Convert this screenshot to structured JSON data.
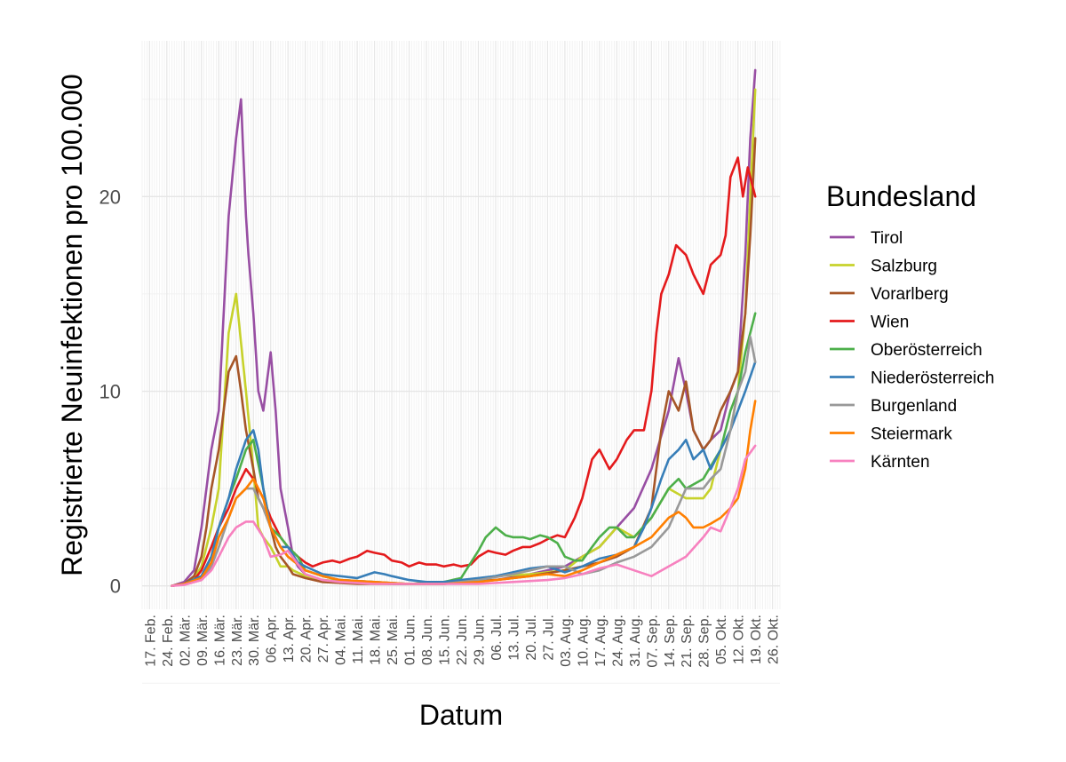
{
  "chart_data": {
    "type": "line",
    "xlabel": "Datum",
    "ylabel": "Registrierte Neuinfektionen pro 100.000",
    "xlim": [
      "2020-02-14",
      "2020-10-29"
    ],
    "ylim": [
      -1.2,
      28
    ],
    "yticks": [
      0,
      10,
      20
    ],
    "ytick_labels": [
      "0",
      "10",
      "20"
    ],
    "xticks": [
      "2020-02-17",
      "2020-02-24",
      "2020-03-02",
      "2020-03-09",
      "2020-03-16",
      "2020-03-23",
      "2020-03-30",
      "2020-04-06",
      "2020-04-13",
      "2020-04-20",
      "2020-04-27",
      "2020-05-04",
      "2020-05-11",
      "2020-05-18",
      "2020-05-25",
      "2020-06-01",
      "2020-06-08",
      "2020-06-15",
      "2020-06-22",
      "2020-06-29",
      "2020-07-06",
      "2020-07-13",
      "2020-07-20",
      "2020-07-27",
      "2020-08-03",
      "2020-08-10",
      "2020-08-17",
      "2020-08-24",
      "2020-08-31",
      "2020-09-07",
      "2020-09-14",
      "2020-09-21",
      "2020-09-28",
      "2020-10-05",
      "2020-10-12",
      "2020-10-19",
      "2020-10-26"
    ],
    "xtick_labels": [
      "17. Feb.",
      "24. Feb.",
      "02. Mär.",
      "09. Mär.",
      "16. Mär.",
      "23. Mär.",
      "30. Mär.",
      "06. Apr.",
      "13. Apr.",
      "20. Apr.",
      "27. Apr.",
      "04. Mai.",
      "11. Mai.",
      "18. Mai.",
      "25. Mai.",
      "01. Jun.",
      "08. Jun.",
      "15. Jun.",
      "22. Jun.",
      "29. Jun.",
      "06. Jul.",
      "13. Jul.",
      "20. Jul.",
      "27. Jul.",
      "03. Aug.",
      "10. Aug.",
      "17. Aug.",
      "24. Aug.",
      "31. Aug.",
      "07. Sep.",
      "14. Sep.",
      "21. Sep.",
      "28. Sep.",
      "05. Okt.",
      "12. Okt.",
      "19. Okt.",
      "26. Okt."
    ],
    "grid": true,
    "legend": {
      "title": "Bundesland",
      "position": "right"
    },
    "series": [
      {
        "name": "Tirol",
        "color": "#984EA3",
        "x": [
          "2020-02-26",
          "2020-03-02",
          "2020-03-06",
          "2020-03-09",
          "2020-03-11",
          "2020-03-13",
          "2020-03-16",
          "2020-03-18",
          "2020-03-20",
          "2020-03-23",
          "2020-03-25",
          "2020-03-27",
          "2020-03-28",
          "2020-03-30",
          "2020-04-01",
          "2020-04-03",
          "2020-04-06",
          "2020-04-08",
          "2020-04-10",
          "2020-04-13",
          "2020-04-15",
          "2020-04-17",
          "2020-04-20",
          "2020-04-23",
          "2020-04-27",
          "2020-05-04",
          "2020-05-25",
          "2020-06-15",
          "2020-07-06",
          "2020-07-20",
          "2020-08-03",
          "2020-08-10",
          "2020-08-17",
          "2020-08-24",
          "2020-08-31",
          "2020-09-07",
          "2020-09-14",
          "2020-09-18",
          "2020-09-21",
          "2020-09-24",
          "2020-09-28",
          "2020-10-01",
          "2020-10-05",
          "2020-10-09",
          "2020-10-12",
          "2020-10-15",
          "2020-10-17",
          "2020-10-19"
        ],
        "y": [
          0,
          0.2,
          0.8,
          3,
          5,
          7,
          9,
          14,
          19,
          23,
          25,
          19,
          17,
          14,
          10,
          9,
          12,
          9,
          5,
          3,
          1.5,
          1,
          0.6,
          0.4,
          0.3,
          0.2,
          0.1,
          0.1,
          0.3,
          0.6,
          1,
          1.5,
          2,
          3,
          4,
          6,
          9,
          11.7,
          10,
          8,
          7,
          7.5,
          8,
          10,
          11,
          17,
          23,
          26.5
        ]
      },
      {
        "name": "Salzburg",
        "color": "#C7D22B",
        "x": [
          "2020-02-26",
          "2020-03-02",
          "2020-03-06",
          "2020-03-09",
          "2020-03-11",
          "2020-03-13",
          "2020-03-16",
          "2020-03-18",
          "2020-03-20",
          "2020-03-23",
          "2020-03-25",
          "2020-03-27",
          "2020-03-30",
          "2020-04-01",
          "2020-04-03",
          "2020-04-06",
          "2020-04-08",
          "2020-04-10",
          "2020-04-13",
          "2020-04-15",
          "2020-04-20",
          "2020-04-27",
          "2020-05-11",
          "2020-06-01",
          "2020-06-22",
          "2020-07-06",
          "2020-07-20",
          "2020-08-03",
          "2020-08-10",
          "2020-08-17",
          "2020-08-24",
          "2020-08-31",
          "2020-09-07",
          "2020-09-14",
          "2020-09-21",
          "2020-09-28",
          "2020-10-01",
          "2020-10-05",
          "2020-10-09",
          "2020-10-12",
          "2020-10-15",
          "2020-10-17",
          "2020-10-19"
        ],
        "y": [
          0,
          0.1,
          0.4,
          1,
          2,
          3,
          5,
          9,
          13,
          15,
          12.5,
          10,
          6,
          3,
          2.5,
          2,
          1.5,
          1,
          1,
          0.8,
          0.5,
          0.3,
          0.2,
          0.1,
          0.2,
          0.5,
          0.6,
          0.8,
          1.5,
          2,
          3,
          2.5,
          3.5,
          5,
          4.5,
          4.5,
          5,
          7,
          8,
          10,
          14,
          20,
          25.5
        ]
      },
      {
        "name": "Vorarlberg",
        "color": "#A65628",
        "x": [
          "2020-02-26",
          "2020-03-02",
          "2020-03-06",
          "2020-03-09",
          "2020-03-11",
          "2020-03-13",
          "2020-03-16",
          "2020-03-18",
          "2020-03-20",
          "2020-03-23",
          "2020-03-25",
          "2020-03-27",
          "2020-03-30",
          "2020-04-01",
          "2020-04-03",
          "2020-04-06",
          "2020-04-08",
          "2020-04-10",
          "2020-04-13",
          "2020-04-15",
          "2020-04-20",
          "2020-04-27",
          "2020-05-11",
          "2020-06-01",
          "2020-06-22",
          "2020-07-06",
          "2020-07-20",
          "2020-08-03",
          "2020-08-10",
          "2020-08-17",
          "2020-08-24",
          "2020-08-31",
          "2020-09-07",
          "2020-09-11",
          "2020-09-14",
          "2020-09-18",
          "2020-09-21",
          "2020-09-24",
          "2020-09-28",
          "2020-10-01",
          "2020-10-05",
          "2020-10-09",
          "2020-10-12",
          "2020-10-15",
          "2020-10-17",
          "2020-10-19"
        ],
        "y": [
          0,
          0.1,
          0.5,
          1.5,
          3,
          5,
          7,
          9,
          11,
          11.8,
          10,
          8,
          6,
          4.5,
          4,
          3,
          2,
          1.5,
          1,
          0.6,
          0.4,
          0.2,
          0.1,
          0.1,
          0.2,
          0.3,
          0.5,
          0.8,
          1,
          1.2,
          1.5,
          2,
          4,
          8,
          10,
          9,
          10.5,
          8,
          7,
          7.5,
          9,
          10,
          11,
          14,
          18,
          23
        ]
      },
      {
        "name": "Wien",
        "color": "#E41A1C",
        "x": [
          "2020-02-26",
          "2020-03-02",
          "2020-03-06",
          "2020-03-09",
          "2020-03-13",
          "2020-03-16",
          "2020-03-20",
          "2020-03-23",
          "2020-03-27",
          "2020-03-30",
          "2020-04-03",
          "2020-04-06",
          "2020-04-10",
          "2020-04-13",
          "2020-04-17",
          "2020-04-20",
          "2020-04-23",
          "2020-04-27",
          "2020-05-01",
          "2020-05-04",
          "2020-05-08",
          "2020-05-11",
          "2020-05-15",
          "2020-05-18",
          "2020-05-22",
          "2020-05-25",
          "2020-05-29",
          "2020-06-01",
          "2020-06-05",
          "2020-06-08",
          "2020-06-12",
          "2020-06-15",
          "2020-06-19",
          "2020-06-22",
          "2020-06-26",
          "2020-06-29",
          "2020-07-03",
          "2020-07-06",
          "2020-07-10",
          "2020-07-13",
          "2020-07-17",
          "2020-07-20",
          "2020-07-24",
          "2020-07-27",
          "2020-07-31",
          "2020-08-03",
          "2020-08-07",
          "2020-08-10",
          "2020-08-14",
          "2020-08-17",
          "2020-08-21",
          "2020-08-24",
          "2020-08-28",
          "2020-08-31",
          "2020-09-04",
          "2020-09-07",
          "2020-09-09",
          "2020-09-11",
          "2020-09-14",
          "2020-09-17",
          "2020-09-21",
          "2020-09-24",
          "2020-09-28",
          "2020-10-01",
          "2020-10-05",
          "2020-10-07",
          "2020-10-09",
          "2020-10-12",
          "2020-10-14",
          "2020-10-16",
          "2020-10-19"
        ],
        "y": [
          0,
          0.1,
          0.3,
          0.8,
          2,
          3,
          4,
          5,
          6,
          5.5,
          4.5,
          3.5,
          2.5,
          2,
          1.5,
          1.2,
          1,
          1.2,
          1.3,
          1.2,
          1.4,
          1.5,
          1.8,
          1.7,
          1.6,
          1.3,
          1.2,
          1,
          1.2,
          1.1,
          1.1,
          1,
          1.1,
          1,
          1.1,
          1.5,
          1.8,
          1.7,
          1.6,
          1.8,
          2,
          2,
          2.2,
          2.4,
          2.6,
          2.5,
          3.5,
          4.5,
          6.5,
          7,
          6,
          6.5,
          7.5,
          8,
          8,
          10,
          13,
          15,
          16,
          17.5,
          17,
          16,
          15,
          16.5,
          17,
          18,
          21,
          22,
          20,
          21.5,
          20
        ]
      },
      {
        "name": "Oberösterreich",
        "color": "#4DAF4A",
        "x": [
          "2020-02-26",
          "2020-03-02",
          "2020-03-09",
          "2020-03-13",
          "2020-03-16",
          "2020-03-20",
          "2020-03-23",
          "2020-03-27",
          "2020-03-30",
          "2020-04-03",
          "2020-04-06",
          "2020-04-10",
          "2020-04-13",
          "2020-04-17",
          "2020-04-20",
          "2020-04-27",
          "2020-05-04",
          "2020-05-18",
          "2020-06-01",
          "2020-06-15",
          "2020-06-22",
          "2020-06-26",
          "2020-06-29",
          "2020-07-02",
          "2020-07-06",
          "2020-07-10",
          "2020-07-13",
          "2020-07-17",
          "2020-07-20",
          "2020-07-24",
          "2020-07-27",
          "2020-07-31",
          "2020-08-03",
          "2020-08-07",
          "2020-08-10",
          "2020-08-14",
          "2020-08-17",
          "2020-08-21",
          "2020-08-24",
          "2020-08-28",
          "2020-08-31",
          "2020-09-07",
          "2020-09-14",
          "2020-09-18",
          "2020-09-21",
          "2020-09-28",
          "2020-10-05",
          "2020-10-09",
          "2020-10-12",
          "2020-10-15",
          "2020-10-19"
        ],
        "y": [
          0,
          0.1,
          0.5,
          1.5,
          3,
          4.5,
          5.5,
          7,
          7.5,
          5,
          3,
          2.5,
          2,
          1.5,
          0.8,
          0.5,
          0.3,
          0.2,
          0.1,
          0.2,
          0.4,
          1.2,
          1.8,
          2.5,
          3,
          2.6,
          2.5,
          2.5,
          2.4,
          2.6,
          2.5,
          2.2,
          1.5,
          1.3,
          1.3,
          2,
          2.5,
          3,
          3,
          2.5,
          2.5,
          3.5,
          5,
          5.5,
          5,
          5.5,
          7,
          9,
          10,
          12,
          14
        ]
      },
      {
        "name": "Niederösterreich",
        "color": "#377EB8",
        "x": [
          "2020-02-26",
          "2020-03-02",
          "2020-03-09",
          "2020-03-13",
          "2020-03-16",
          "2020-03-20",
          "2020-03-23",
          "2020-03-27",
          "2020-03-30",
          "2020-04-01",
          "2020-04-03",
          "2020-04-06",
          "2020-04-10",
          "2020-04-13",
          "2020-04-17",
          "2020-04-20",
          "2020-04-27",
          "2020-05-04",
          "2020-05-11",
          "2020-05-18",
          "2020-05-22",
          "2020-05-25",
          "2020-06-01",
          "2020-06-08",
          "2020-06-15",
          "2020-06-22",
          "2020-06-29",
          "2020-07-06",
          "2020-07-13",
          "2020-07-20",
          "2020-07-27",
          "2020-08-03",
          "2020-08-10",
          "2020-08-17",
          "2020-08-24",
          "2020-08-31",
          "2020-09-04",
          "2020-09-07",
          "2020-09-11",
          "2020-09-14",
          "2020-09-18",
          "2020-09-21",
          "2020-09-24",
          "2020-09-28",
          "2020-10-01",
          "2020-10-05",
          "2020-10-09",
          "2020-10-12",
          "2020-10-15",
          "2020-10-19"
        ],
        "y": [
          0,
          0.1,
          0.5,
          1.5,
          3,
          4.5,
          6,
          7.5,
          8,
          7,
          5,
          3,
          2,
          2,
          1.2,
          1,
          0.6,
          0.5,
          0.4,
          0.7,
          0.6,
          0.5,
          0.3,
          0.2,
          0.2,
          0.3,
          0.4,
          0.5,
          0.7,
          0.9,
          1,
          0.7,
          1,
          1.4,
          1.6,
          2,
          3,
          4,
          5.5,
          6.5,
          7,
          7.5,
          6.5,
          7,
          6,
          7,
          8,
          9,
          10,
          11.5
        ]
      },
      {
        "name": "Burgenland",
        "color": "#999999",
        "x": [
          "2020-02-26",
          "2020-03-02",
          "2020-03-09",
          "2020-03-13",
          "2020-03-16",
          "2020-03-20",
          "2020-03-23",
          "2020-03-27",
          "2020-03-30",
          "2020-04-03",
          "2020-04-06",
          "2020-04-10",
          "2020-04-13",
          "2020-04-20",
          "2020-04-27",
          "2020-05-04",
          "2020-05-18",
          "2020-06-01",
          "2020-06-15",
          "2020-06-29",
          "2020-07-13",
          "2020-07-20",
          "2020-07-27",
          "2020-08-03",
          "2020-08-10",
          "2020-08-17",
          "2020-08-24",
          "2020-08-31",
          "2020-09-07",
          "2020-09-14",
          "2020-09-21",
          "2020-09-28",
          "2020-10-01",
          "2020-10-05",
          "2020-10-09",
          "2020-10-12",
          "2020-10-15",
          "2020-10-17",
          "2020-10-19"
        ],
        "y": [
          0,
          0.1,
          0.3,
          1,
          2,
          3.5,
          4.5,
          5,
          5,
          4,
          3,
          2,
          1.5,
          0.8,
          0.5,
          0.3,
          0.2,
          0.1,
          0.1,
          0.3,
          0.6,
          0.8,
          1,
          1,
          0.6,
          0.8,
          1.2,
          1.5,
          2,
          3,
          5,
          5,
          5.5,
          6,
          8,
          10,
          11,
          12.8,
          11.5
        ]
      },
      {
        "name": "Steiermark",
        "color": "#FF7F00",
        "x": [
          "2020-02-26",
          "2020-03-02",
          "2020-03-09",
          "2020-03-13",
          "2020-03-16",
          "2020-03-20",
          "2020-03-23",
          "2020-03-27",
          "2020-03-30",
          "2020-04-03",
          "2020-04-06",
          "2020-04-10",
          "2020-04-13",
          "2020-04-20",
          "2020-04-27",
          "2020-05-04",
          "2020-05-18",
          "2020-06-01",
          "2020-06-15",
          "2020-06-29",
          "2020-07-13",
          "2020-07-27",
          "2020-08-03",
          "2020-08-10",
          "2020-08-17",
          "2020-08-24",
          "2020-08-31",
          "2020-09-07",
          "2020-09-14",
          "2020-09-18",
          "2020-09-21",
          "2020-09-24",
          "2020-09-28",
          "2020-10-01",
          "2020-10-05",
          "2020-10-09",
          "2020-10-12",
          "2020-10-15",
          "2020-10-17",
          "2020-10-19"
        ],
        "y": [
          0,
          0.1,
          0.4,
          1.2,
          2.5,
          3.5,
          4.5,
          5,
          5.5,
          4.5,
          3,
          2,
          1.5,
          0.8,
          0.5,
          0.3,
          0.2,
          0.1,
          0.1,
          0.2,
          0.4,
          0.6,
          0.5,
          0.8,
          1.2,
          1.6,
          2,
          2.5,
          3.5,
          3.8,
          3.5,
          3,
          3,
          3.2,
          3.5,
          4,
          4.5,
          6,
          8,
          9.5
        ]
      },
      {
        "name": "Kärnten",
        "color": "#F781BF",
        "x": [
          "2020-02-26",
          "2020-03-02",
          "2020-03-09",
          "2020-03-13",
          "2020-03-16",
          "2020-03-20",
          "2020-03-23",
          "2020-03-27",
          "2020-03-30",
          "2020-04-03",
          "2020-04-06",
          "2020-04-10",
          "2020-04-13",
          "2020-04-20",
          "2020-04-27",
          "2020-05-04",
          "2020-05-18",
          "2020-06-01",
          "2020-06-15",
          "2020-06-29",
          "2020-07-13",
          "2020-07-27",
          "2020-08-03",
          "2020-08-10",
          "2020-08-17",
          "2020-08-24",
          "2020-08-31",
          "2020-09-07",
          "2020-09-14",
          "2020-09-21",
          "2020-09-28",
          "2020-10-01",
          "2020-10-05",
          "2020-10-09",
          "2020-10-12",
          "2020-10-15",
          "2020-10-19"
        ],
        "y": [
          0,
          0.05,
          0.3,
          0.8,
          1.5,
          2.5,
          3,
          3.3,
          3.3,
          2.5,
          1.5,
          1.6,
          1.8,
          0.6,
          0.3,
          0.2,
          0.1,
          0.1,
          0.1,
          0.1,
          0.2,
          0.3,
          0.4,
          0.6,
          0.9,
          1.1,
          0.8,
          0.5,
          1,
          1.5,
          2.5,
          3,
          2.8,
          4,
          5,
          6.5,
          7.2
        ]
      }
    ]
  }
}
